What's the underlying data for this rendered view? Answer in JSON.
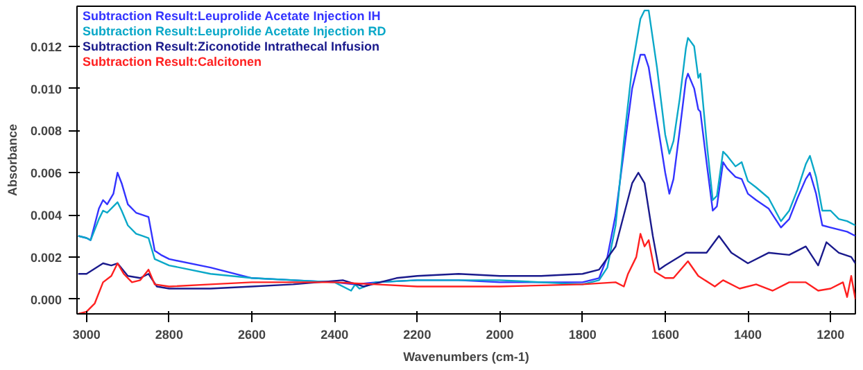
{
  "chart_data": {
    "type": "line",
    "xlabel": "Wavenumbers (cm-1)",
    "ylabel": "Absorbance",
    "xlim": [
      3023,
      1140
    ],
    "ylim": [
      -0.0007,
      0.0139
    ],
    "xticks": [
      3000,
      2800,
      2600,
      2400,
      2200,
      2000,
      1800,
      1600,
      1400,
      1200
    ],
    "yticks": [
      {
        "value": 0,
        "label": "0.000"
      },
      {
        "value": 0.002,
        "label": "0.002"
      },
      {
        "value": 0.004,
        "label": "0.004"
      },
      {
        "value": 0.006,
        "label": "0.006"
      },
      {
        "value": 0.008,
        "label": "0.008"
      },
      {
        "value": 0.01,
        "label": "0.010"
      },
      {
        "value": 0.012,
        "label": "0.012"
      }
    ],
    "grid": false,
    "legend": "top left",
    "marker": "none",
    "line_style": "solid",
    "series": [
      {
        "name": "Subtraction Result:Leuprolide Acetate Injection IH",
        "color": "#3333ff",
        "x": [
          3020,
          3000,
          2990,
          2970,
          2960,
          2950,
          2935,
          2925,
          2915,
          2900,
          2880,
          2865,
          2850,
          2835,
          2820,
          2800,
          2700,
          2600,
          2500,
          2400,
          2350,
          2300,
          2200,
          2100,
          2000,
          1900,
          1800,
          1760,
          1740,
          1720,
          1700,
          1680,
          1660,
          1650,
          1640,
          1620,
          1600,
          1590,
          1580,
          1565,
          1550,
          1545,
          1530,
          1520,
          1515,
          1500,
          1485,
          1475,
          1460,
          1450,
          1430,
          1415,
          1400,
          1380,
          1350,
          1320,
          1300,
          1280,
          1260,
          1250,
          1235,
          1220,
          1200,
          1180,
          1160,
          1140
        ],
        "values": [
          0.003,
          0.0029,
          0.0028,
          0.0043,
          0.0047,
          0.0045,
          0.005,
          0.006,
          0.0055,
          0.0045,
          0.0041,
          0.004,
          0.0039,
          0.0023,
          0.0021,
          0.0019,
          0.0015,
          0.001,
          0.0009,
          0.0008,
          0.0007,
          0.0008,
          0.0009,
          0.0009,
          0.0008,
          0.0008,
          0.0008,
          0.001,
          0.002,
          0.004,
          0.007,
          0.01,
          0.0116,
          0.0116,
          0.011,
          0.0085,
          0.006,
          0.005,
          0.0057,
          0.008,
          0.0104,
          0.0107,
          0.01,
          0.009,
          0.0089,
          0.0065,
          0.0042,
          0.0044,
          0.0065,
          0.0062,
          0.0058,
          0.0057,
          0.005,
          0.0047,
          0.0043,
          0.0034,
          0.0038,
          0.0048,
          0.0057,
          0.006,
          0.005,
          0.0035,
          0.0034,
          0.0033,
          0.0032,
          0.003
        ]
      },
      {
        "name": "Subtraction Result:Leuprolide Acetate Injection RD",
        "color": "#0aa8c8",
        "x": [
          3020,
          3000,
          2990,
          2970,
          2960,
          2950,
          2935,
          2925,
          2915,
          2900,
          2880,
          2865,
          2850,
          2835,
          2800,
          2700,
          2600,
          2400,
          2360,
          2350,
          2340,
          2300,
          2200,
          2000,
          1800,
          1760,
          1740,
          1720,
          1700,
          1680,
          1660,
          1650,
          1640,
          1620,
          1600,
          1590,
          1580,
          1565,
          1550,
          1545,
          1530,
          1520,
          1515,
          1500,
          1485,
          1475,
          1460,
          1450,
          1430,
          1415,
          1400,
          1380,
          1350,
          1320,
          1300,
          1280,
          1260,
          1250,
          1235,
          1220,
          1200,
          1180,
          1160,
          1140
        ],
        "values": [
          0.003,
          0.0029,
          0.0028,
          0.0038,
          0.0042,
          0.0041,
          0.0044,
          0.0046,
          0.0042,
          0.0035,
          0.0031,
          0.003,
          0.0029,
          0.0019,
          0.0016,
          0.0012,
          0.001,
          0.0008,
          0.0004,
          0.0007,
          0.0005,
          0.0008,
          0.0009,
          0.0009,
          0.0007,
          0.0009,
          0.0015,
          0.0035,
          0.0075,
          0.011,
          0.0133,
          0.0137,
          0.0137,
          0.011,
          0.0078,
          0.0069,
          0.0075,
          0.0095,
          0.0119,
          0.0124,
          0.012,
          0.0105,
          0.0107,
          0.0075,
          0.0047,
          0.0049,
          0.007,
          0.0068,
          0.0063,
          0.0065,
          0.0056,
          0.0053,
          0.0048,
          0.0037,
          0.0042,
          0.0052,
          0.0064,
          0.0068,
          0.0058,
          0.0042,
          0.0042,
          0.0038,
          0.0037,
          0.0035
        ]
      },
      {
        "name": "Subtraction Result:Ziconotide Intrathecal Infusion",
        "color": "#1a1a8c",
        "x": [
          3020,
          3000,
          2960,
          2940,
          2925,
          2900,
          2870,
          2850,
          2830,
          2800,
          2700,
          2600,
          2500,
          2380,
          2330,
          2250,
          2200,
          2100,
          2000,
          1900,
          1800,
          1760,
          1720,
          1700,
          1680,
          1665,
          1650,
          1630,
          1615,
          1600,
          1550,
          1500,
          1470,
          1440,
          1400,
          1350,
          1300,
          1260,
          1230,
          1210,
          1180,
          1150,
          1140
        ],
        "values": [
          0.0012,
          0.0012,
          0.0017,
          0.0016,
          0.0017,
          0.0011,
          0.001,
          0.0012,
          0.0006,
          0.0005,
          0.0005,
          0.0006,
          0.0007,
          0.0009,
          0.0006,
          0.001,
          0.0011,
          0.0012,
          0.0011,
          0.0011,
          0.0012,
          0.0014,
          0.0025,
          0.004,
          0.0055,
          0.006,
          0.0055,
          0.003,
          0.0014,
          0.0016,
          0.0022,
          0.0022,
          0.003,
          0.0022,
          0.0017,
          0.0022,
          0.0021,
          0.0025,
          0.0016,
          0.0027,
          0.0022,
          0.002,
          0.0017
        ]
      },
      {
        "name": "Subtraction Result:Calcitonen",
        "color": "#ff2020",
        "x": [
          3020,
          3000,
          2980,
          2960,
          2940,
          2925,
          2910,
          2890,
          2870,
          2850,
          2835,
          2800,
          2700,
          2600,
          2400,
          2300,
          2200,
          2100,
          2000,
          1800,
          1720,
          1700,
          1690,
          1670,
          1660,
          1650,
          1640,
          1625,
          1600,
          1580,
          1545,
          1520,
          1480,
          1460,
          1420,
          1380,
          1340,
          1300,
          1260,
          1230,
          1200,
          1170,
          1160,
          1150,
          1140
        ],
        "values": [
          -0.0007,
          -0.0006,
          -0.0002,
          0.0008,
          0.0011,
          0.0017,
          0.0012,
          0.0008,
          0.0009,
          0.0014,
          0.0007,
          0.0006,
          0.0007,
          0.0008,
          0.0008,
          0.0007,
          0.0006,
          0.0006,
          0.0006,
          0.0007,
          0.0008,
          0.0006,
          0.0012,
          0.002,
          0.0031,
          0.0025,
          0.0028,
          0.0013,
          0.001,
          0.001,
          0.0018,
          0.0011,
          0.0006,
          0.0009,
          0.0005,
          0.0007,
          0.0004,
          0.0008,
          0.0008,
          0.0004,
          0.0005,
          0.0008,
          0.0001,
          0.0011,
          0.0
        ]
      }
    ]
  }
}
